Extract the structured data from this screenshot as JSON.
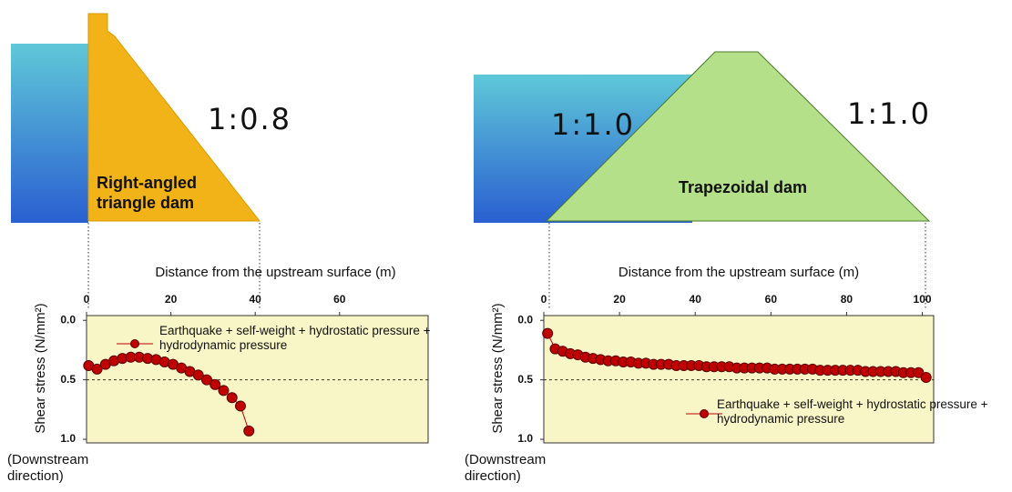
{
  "chart_data": [
    {
      "type": "line",
      "annotations": [
        "1:0.8",
        "Right-angled triangle dam"
      ],
      "xlabel": "Distance from the upstream surface (m)",
      "ylabel": "Shear stress (N/mm²)",
      "ynote": "(Downstream direction)",
      "x": [
        0.5,
        2.5,
        4.5,
        6.5,
        8.5,
        10.5,
        12.5,
        14.5,
        16.5,
        18.5,
        20.5,
        22.5,
        24.5,
        26.5,
        28.5,
        30.5,
        32.5,
        34.5,
        36.5,
        38.5
      ],
      "series": [
        {
          "name": "Earthquake + self-weight + hydrostatic pressure + hydrodynamic pressure",
          "color": "#c00000",
          "values": [
            0.38,
            0.41,
            0.37,
            0.34,
            0.32,
            0.31,
            0.31,
            0.32,
            0.33,
            0.35,
            0.37,
            0.4,
            0.43,
            0.46,
            0.5,
            0.54,
            0.59,
            0.65,
            0.72,
            0.93
          ]
        }
      ],
      "xlim": [
        0,
        81
      ],
      "ylim": [
        -0.04,
        1.03
      ],
      "xticks": [
        0,
        20,
        40,
        60
      ],
      "yticks": [
        {
          "value": 0,
          "label": "0.0"
        },
        0.5,
        {
          "value": 1,
          "label": "1.0"
        }
      ],
      "hline": 0.5,
      "legend": "upper center"
    },
    {
      "type": "line",
      "annotations": [
        "1:1.0",
        "1:1.0",
        "Trapezoidal dam"
      ],
      "xlabel": "Distance from the upstream surface (m)",
      "ylabel": "Shear stress (N/mm²)",
      "ynote": "(Downstream direction)",
      "x": [
        1,
        3,
        5,
        7,
        9,
        11,
        13,
        15,
        17,
        19,
        21,
        23,
        25,
        27,
        29,
        31,
        33,
        35,
        37,
        39,
        41,
        43,
        45,
        47,
        49,
        51,
        53,
        55,
        57,
        59,
        61,
        63,
        65,
        67,
        69,
        71,
        73,
        75,
        77,
        79,
        81,
        83,
        85,
        87,
        89,
        91,
        93,
        95,
        97,
        99,
        101
      ],
      "series": [
        {
          "name": "Earthquake + self-weight + hydrostatic pressure + hydrodynamic pressure",
          "color": "#c00000",
          "values": [
            0.11,
            0.24,
            0.26,
            0.28,
            0.29,
            0.31,
            0.32,
            0.33,
            0.34,
            0.34,
            0.35,
            0.35,
            0.36,
            0.36,
            0.37,
            0.37,
            0.37,
            0.38,
            0.38,
            0.38,
            0.38,
            0.39,
            0.39,
            0.39,
            0.39,
            0.4,
            0.4,
            0.4,
            0.4,
            0.4,
            0.41,
            0.41,
            0.41,
            0.41,
            0.41,
            0.41,
            0.42,
            0.42,
            0.42,
            0.42,
            0.42,
            0.42,
            0.43,
            0.43,
            0.43,
            0.43,
            0.43,
            0.44,
            0.44,
            0.44,
            0.48
          ]
        }
      ],
      "xlim": [
        0,
        103
      ],
      "ylim": [
        -0.04,
        1.03
      ],
      "xticks": [
        0,
        20,
        40,
        60,
        80,
        100
      ],
      "yticks": [
        {
          "value": 0,
          "label": "0.0"
        },
        0.5,
        {
          "value": 1,
          "label": "1.0"
        }
      ],
      "hline": 0.5,
      "legend": "lower right"
    }
  ]
}
